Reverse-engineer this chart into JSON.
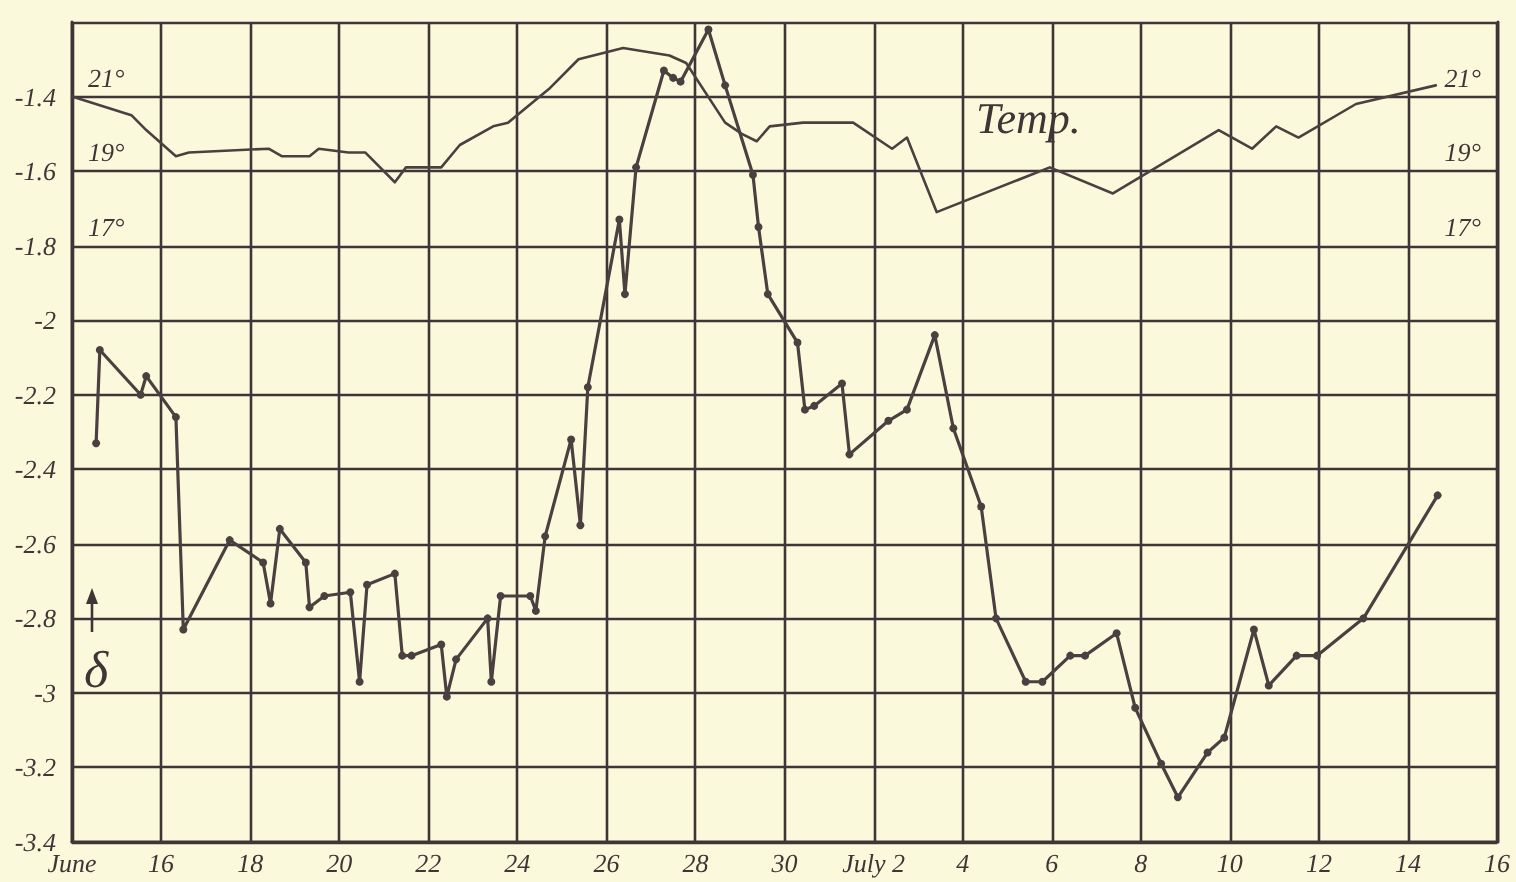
{
  "chart_data": {
    "type": "line",
    "ylabel": "δ",
    "x": [
      "--06-14T13:00",
      "--06-14T15:00",
      "--06-15T13:00",
      "--06-15T16:00",
      "--06-16T08:00",
      "--06-16T12:00",
      "--06-17T13:00",
      "--06-18T07:00",
      "--06-18T11:00",
      "--06-18T16:00",
      "--06-19T06:00",
      "--06-19T08:00",
      "--06-19T16:00",
      "--06-20T06:00",
      "--06-20T11:00",
      "--06-20T15:00",
      "--06-21T06:00",
      "--06-21T10:00",
      "--06-21T15:00",
      "--06-22T07:00",
      "--06-22T10:00",
      "--06-22T15:00",
      "--06-23T08:00",
      "--06-23T10:00",
      "--06-23T15:00",
      "--06-24T07:00",
      "--06-24T10:00",
      "--06-24T15:00",
      "--06-25T05:00",
      "--06-25T10:00",
      "--06-25T14:00",
      "--06-26T07:00",
      "--06-26T10:00",
      "--06-26T16:00",
      "--06-27T07:00",
      "--06-27T12:00",
      "--06-27T16:00",
      "--06-28T07:00",
      "--06-28T16:00",
      "--06-29T07:00",
      "--06-29T10:00",
      "--06-29T15:00",
      "--06-30T07:00",
      "--06-30T11:00",
      "--06-30T16:00",
      "--07-01T07:00",
      "--07-01T11:00",
      "--07-02T08:00",
      "--07-02T18:00",
      "--07-03T09:00",
      "--07-03T19:00",
      "--07-04T10:00",
      "--07-04T18:00",
      "--07-05T10:00",
      "--07-05T19:00",
      "--07-06T10:00",
      "--07-06T18:00",
      "--07-07T11:00",
      "--07-07T21:00",
      "--07-08T11:00",
      "--07-08T20:00",
      "--07-09T12:00",
      "--07-09T21:00",
      "--07-10T13:00",
      "--07-10T21:00",
      "--07-11T12:00",
      "--07-11T23:00",
      "--07-13T00:00",
      "--07-14T16:00"
    ],
    "series": [
      {
        "color": "#4a4040",
        "marker": "circle",
        "values": [
          -2.33,
          -2.08,
          -2.2,
          -2.15,
          -2.26,
          -2.83,
          -2.59,
          -2.65,
          -2.76,
          -2.56,
          -2.65,
          -2.77,
          -2.74,
          -2.73,
          -2.97,
          -2.71,
          -2.68,
          -2.9,
          -2.9,
          -2.87,
          -3.01,
          -2.91,
          -2.8,
          -2.97,
          -2.74,
          -2.74,
          -2.78,
          -2.58,
          -2.32,
          -2.55,
          -2.18,
          -1.73,
          -1.93,
          -1.59,
          -1.33,
          -1.35,
          -1.36,
          -1.22,
          -1.37,
          -1.61,
          -1.75,
          -1.93,
          -2.06,
          -2.24,
          -2.23,
          -2.17,
          -2.36,
          -2.27,
          -2.24,
          -2.04,
          -2.29,
          -2.5,
          -2.8,
          -2.97,
          -2.97,
          -2.9,
          -2.9,
          -2.84,
          -3.04,
          -3.19,
          -3.28,
          -3.16,
          -3.12,
          -2.83,
          -2.98,
          -2.9,
          -2.9,
          -2.8,
          -2.47
        ]
      },
      {
        "name": "Temp.",
        "color": "#4a4040",
        "marker": "none",
        "axis": "y2",
        "x": [
          "--06-14T00:00",
          "--06-15T08:00",
          "--06-15T16:00",
          "--06-16T08:00",
          "--06-16T15:00",
          "--06-18T10:00",
          "--06-18T17:00",
          "--06-19T08:00",
          "--06-19T13:00",
          "--06-20T05:00",
          "--06-20T14:00",
          "--06-21T06:00",
          "--06-21T12:00",
          "--06-22T07:00",
          "--06-22T17:00",
          "--06-23T11:00",
          "--06-23T19:00",
          "--06-24T17:00",
          "--06-25T09:00",
          "--06-26T09:00",
          "--06-27T10:00",
          "--06-27T19:00",
          "--06-28T16:00",
          "--06-29T01:00",
          "--06-29T09:00",
          "--06-29T16:00",
          "--06-30T10:00",
          "--07-01T13:00",
          "--07-02T10:00",
          "--07-02T18:00",
          "--07-03T10:00",
          "--07-05T23:00",
          "--07-07T09:00",
          "--07-09T18:00",
          "--07-10T12:00",
          "--07-11T01:00",
          "--07-11T13:00",
          "--07-12T20:00",
          "--07-14T15:00"
        ],
        "values": [
          21.0,
          20.5,
          20.1,
          19.4,
          19.5,
          19.6,
          19.4,
          19.4,
          19.6,
          19.5,
          19.5,
          18.7,
          19.1,
          19.1,
          19.7,
          20.2,
          20.3,
          21.2,
          22.0,
          22.3,
          22.1,
          21.9,
          20.3,
          20.0,
          19.8,
          20.2,
          20.3,
          20.3,
          19.6,
          19.9,
          17.9,
          19.1,
          18.4,
          20.1,
          19.6,
          20.2,
          19.9,
          20.8,
          21.3
        ]
      }
    ],
    "xlim": [
      "--06-14",
      "--07-16"
    ],
    "xticks": [
      {
        "value": "--06-14",
        "label": "June"
      },
      {
        "value": "--06-16",
        "label": "16"
      },
      {
        "value": "--06-18",
        "label": "18"
      },
      {
        "value": "--06-20",
        "label": "20"
      },
      {
        "value": "--06-22",
        "label": "22"
      },
      {
        "value": "--06-24",
        "label": "24"
      },
      {
        "value": "--06-26",
        "label": "26"
      },
      {
        "value": "--06-28",
        "label": "28"
      },
      {
        "value": "--06-30",
        "label": "30"
      },
      {
        "value": "--07-02",
        "label": "July 2"
      },
      {
        "value": "--07-04",
        "label": "4"
      },
      {
        "value": "--07-06",
        "label": "6"
      },
      {
        "value": "--07-08",
        "label": "8"
      },
      {
        "value": "--07-10",
        "label": "10"
      },
      {
        "value": "--07-12",
        "label": "12"
      },
      {
        "value": "--07-14",
        "label": "14"
      },
      {
        "value": "--07-16",
        "label": "16"
      }
    ],
    "ylim": [
      -3.4,
      -1.2
    ],
    "yticks": [
      {
        "value": -1.2,
        "label": null
      },
      -1.4,
      -1.6,
      -1.8,
      -2.0,
      -2.2,
      -2.4,
      -2.6,
      -2.8,
      -3.0,
      -3.2,
      -3.4
    ],
    "y2lim": [
      1,
      23
    ],
    "y2ticks": [
      {
        "value": 17,
        "label": "17°"
      },
      {
        "value": 19,
        "label": "19°"
      },
      {
        "value": 21,
        "label": "21°"
      }
    ],
    "y3lim": [
      1,
      23
    ],
    "y3ticks": [
      {
        "value": 17,
        "label": "17°"
      },
      {
        "value": 19,
        "label": "19°"
      },
      {
        "value": 21,
        "label": "21°"
      }
    ],
    "grid": true,
    "legend": false,
    "line_style": "solid"
  }
}
